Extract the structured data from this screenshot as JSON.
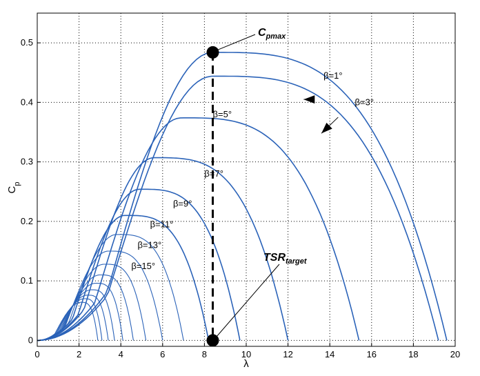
{
  "chart_data": {
    "type": "line",
    "title": "",
    "xlabel": "λ",
    "ylabel_main": "C",
    "ylabel_sub": "p",
    "xlim": [
      0,
      20
    ],
    "ylim": [
      -0.01,
      0.55
    ],
    "x_ticks": [
      0,
      2,
      4,
      6,
      8,
      10,
      12,
      14,
      16,
      18,
      20
    ],
    "y_ticks": [
      0,
      0.1,
      0.2,
      0.3,
      0.4,
      0.5
    ],
    "x_tick_labels": [
      "0",
      "2",
      "4",
      "6",
      "8",
      "10",
      "12",
      "14",
      "16",
      "18",
      "20"
    ],
    "y_tick_labels": [
      "0",
      "0.1",
      "0.2",
      "0.3",
      "0.4",
      "0.5"
    ],
    "grid": true,
    "line_color": "#2a62b8",
    "series": [
      {
        "name": "β=1°",
        "peak_x": 8.4,
        "peak_y": 0.484,
        "root_x": 19.6
      },
      {
        "name": "β=3°",
        "peak_x": 8.4,
        "peak_y": 0.444,
        "root_x": 19.2
      },
      {
        "name": "β=5°",
        "peak_x": 6.9,
        "peak_y": 0.374,
        "root_x": 15.4
      },
      {
        "name": "β=7°",
        "peak_x": 5.6,
        "peak_y": 0.307,
        "root_x": 12.0
      },
      {
        "name": "β=9°",
        "peak_x": 4.9,
        "peak_y": 0.254,
        "root_x": 9.7
      },
      {
        "name": "β=11°",
        "peak_x": 4.2,
        "peak_y": 0.21,
        "root_x": 8.2
      },
      {
        "name": "β=13°",
        "peak_x": 3.8,
        "peak_y": 0.178,
        "root_x": 7.0
      },
      {
        "name": "β=15°",
        "peak_x": 3.4,
        "peak_y": 0.15,
        "root_x": 6.0
      },
      {
        "name": "",
        "peak_x": 3.2,
        "peak_y": 0.128,
        "root_x": 5.2
      },
      {
        "name": "",
        "peak_x": 3.0,
        "peak_y": 0.11,
        "root_x": 4.6
      },
      {
        "name": "",
        "peak_x": 2.8,
        "peak_y": 0.096,
        "root_x": 4.1
      },
      {
        "name": "",
        "peak_x": 2.6,
        "peak_y": 0.085,
        "root_x": 3.7
      },
      {
        "name": "",
        "peak_x": 2.4,
        "peak_y": 0.076,
        "root_x": 3.4
      },
      {
        "name": "",
        "peak_x": 2.25,
        "peak_y": 0.07,
        "root_x": 3.1
      },
      {
        "name": "",
        "peak_x": 2.1,
        "peak_y": 0.064,
        "root_x": 2.9
      }
    ],
    "curve_labels": [
      {
        "text": "β=1°",
        "x": 13.7,
        "y": 0.44
      },
      {
        "text": "β=3°",
        "x": 15.2,
        "y": 0.395
      },
      {
        "text": "β=5°",
        "x": 8.4,
        "y": 0.375
      },
      {
        "text": "β=7°",
        "x": 8.0,
        "y": 0.275
      },
      {
        "text": "β=9°",
        "x": 6.5,
        "y": 0.225
      },
      {
        "text": "β=11°",
        "x": 5.4,
        "y": 0.19
      },
      {
        "text": "β=13°",
        "x": 4.8,
        "y": 0.155
      },
      {
        "text": "β=15°",
        "x": 4.5,
        "y": 0.12
      }
    ],
    "cp_arrows": [
      {
        "from_x": 13.0,
        "from_y": 0.405,
        "to_x": 12.7,
        "to_y": 0.4,
        "tip_x": 12.75,
        "tip_y": 0.405
      },
      {
        "from_x": 14.4,
        "from_y": 0.375,
        "to_x": 13.6,
        "to_y": 0.348,
        "tip_x": 13.6,
        "tip_y": 0.348
      }
    ],
    "cpmax_point": {
      "x": 8.4,
      "y": 0.484
    },
    "tsr_point": {
      "x": 8.4,
      "y": 0.0
    },
    "annotations": {
      "cpmax_main": "C",
      "cpmax_sub": "pmax",
      "tsr_main": "TSR",
      "tsr_sub": "target"
    }
  }
}
